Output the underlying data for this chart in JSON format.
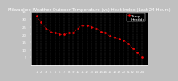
{
  "title": "Milwaukee Weather Outdoor Temperature (vs) Heat Index (Last 24 Hours)",
  "temp": [
    32,
    28,
    24,
    22,
    21,
    20,
    20,
    21,
    21,
    24,
    26,
    26,
    25,
    24,
    22,
    21,
    19,
    18,
    17,
    16,
    14,
    11,
    8,
    5
  ],
  "heat": [
    32,
    28,
    24,
    22,
    21,
    20,
    20,
    21,
    21,
    24,
    26,
    26,
    25,
    24,
    22,
    21,
    19,
    18,
    17,
    16,
    14,
    11,
    8,
    5
  ],
  "temp_color": "#FF0000",
  "heat_color": "#000000",
  "bg_color": "#000000",
  "plot_bg": "#000000",
  "fig_bg": "#c0c0c0",
  "grid_color": "#555555",
  "y_min": 0,
  "y_max": 35,
  "y_ticks": [
    5,
    10,
    15,
    20,
    25,
    30,
    35
  ],
  "title_fontsize": 4.0,
  "legend_fontsize": 3.2,
  "tick_fontsize": 2.8,
  "tick_color": "#ffffff"
}
